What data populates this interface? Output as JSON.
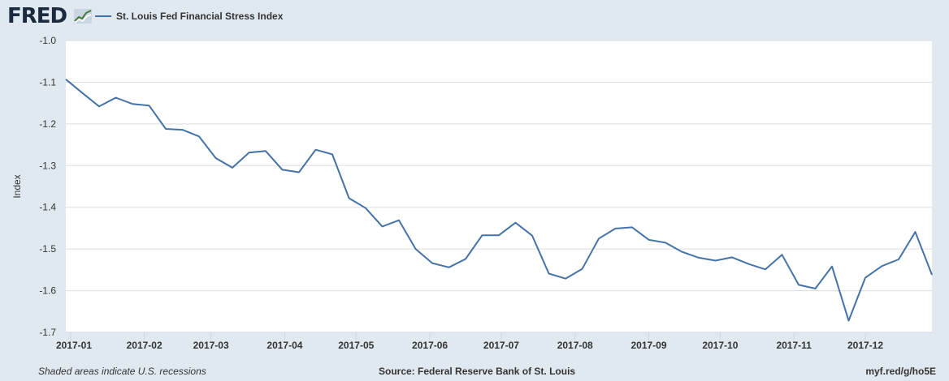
{
  "header": {
    "logo_text": "FRED",
    "logo_mark_icon": "fred-chart-icon",
    "legend_label": "St. Louis Fed Financial Stress Index"
  },
  "footer": {
    "recession_note": "Shaded areas indicate U.S. recessions",
    "source": "Source: Federal Reserve Bank of St. Louis",
    "short_url": "myf.red/g/ho5E"
  },
  "colors": {
    "series": "#4572a7",
    "background": "#e1e9f0",
    "plot_background": "#ffffff",
    "grid": "#dddddd"
  },
  "chart_data": {
    "type": "line",
    "title": "",
    "xlabel": "",
    "ylabel": "Index",
    "ylim": [
      -1.7,
      -1.0
    ],
    "xlim": [
      "2016-12-30",
      "2017-12-29"
    ],
    "grid": true,
    "legend_position": "top-left",
    "y_ticks": [
      "-1.0",
      "-1.1",
      "-1.2",
      "-1.3",
      "-1.4",
      "-1.5",
      "-1.6",
      "-1.7"
    ],
    "x_ticks": [
      "2017-01",
      "2017-02",
      "2017-03",
      "2017-04",
      "2017-05",
      "2017-06",
      "2017-07",
      "2017-08",
      "2017-09",
      "2017-10",
      "2017-11",
      "2017-12"
    ],
    "series": [
      {
        "name": "St. Louis Fed Financial Stress Index",
        "x": [
          "2016-12-30",
          "2017-01-06",
          "2017-01-13",
          "2017-01-20",
          "2017-01-27",
          "2017-02-03",
          "2017-02-10",
          "2017-02-17",
          "2017-02-24",
          "2017-03-03",
          "2017-03-10",
          "2017-03-17",
          "2017-03-24",
          "2017-03-31",
          "2017-04-07",
          "2017-04-14",
          "2017-04-21",
          "2017-04-28",
          "2017-05-05",
          "2017-05-12",
          "2017-05-19",
          "2017-05-26",
          "2017-06-02",
          "2017-06-09",
          "2017-06-16",
          "2017-06-23",
          "2017-06-30",
          "2017-07-07",
          "2017-07-14",
          "2017-07-21",
          "2017-07-28",
          "2017-08-04",
          "2017-08-11",
          "2017-08-18",
          "2017-08-25",
          "2017-09-01",
          "2017-09-08",
          "2017-09-15",
          "2017-09-22",
          "2017-09-29",
          "2017-10-06",
          "2017-10-13",
          "2017-10-20",
          "2017-10-27",
          "2017-11-03",
          "2017-11-10",
          "2017-11-17",
          "2017-11-24",
          "2017-12-01",
          "2017-12-08",
          "2017-12-15",
          "2017-12-22",
          "2017-12-29"
        ],
        "values": [
          -1.093,
          -1.126,
          -1.158,
          -1.137,
          -1.152,
          -1.156,
          -1.212,
          -1.214,
          -1.23,
          -1.282,
          -1.305,
          -1.269,
          -1.265,
          -1.31,
          -1.316,
          -1.262,
          -1.273,
          -1.378,
          -1.402,
          -1.446,
          -1.431,
          -1.5,
          -1.534,
          -1.544,
          -1.524,
          -1.467,
          -1.467,
          -1.437,
          -1.468,
          -1.559,
          -1.571,
          -1.548,
          -1.475,
          -1.451,
          -1.448,
          -1.478,
          -1.485,
          -1.507,
          -1.521,
          -1.528,
          -1.52,
          -1.536,
          -1.549,
          -1.514,
          -1.586,
          -1.595,
          -1.542,
          -1.672,
          -1.569,
          -1.541,
          -1.525,
          -1.459,
          -1.562
        ]
      }
    ]
  }
}
